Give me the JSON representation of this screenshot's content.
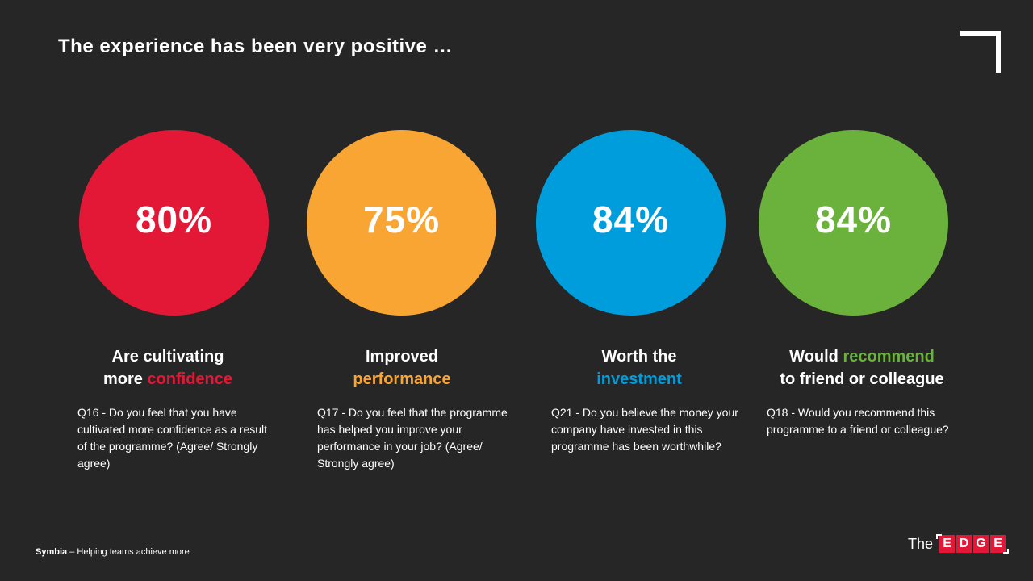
{
  "title": "The experience has been very positive …",
  "colors": {
    "red": "#E31837",
    "orange": "#F9A533",
    "blue": "#009DDC",
    "green": "#6AB23C",
    "background": "#262626"
  },
  "stats": [
    {
      "value": "80%",
      "line1_pre": "Are cultivating",
      "line1_accent": "",
      "line2_pre": "more ",
      "line2_accent": "confidence",
      "line2_post": "",
      "question": "Q16 - Do you feel that you have cultivated more confidence as a result of the programme? (Agree/ Strongly agree)"
    },
    {
      "value": "75%",
      "line1_pre": "Improved",
      "line1_accent": "",
      "line2_pre": "",
      "line2_accent": "performance",
      "line2_post": "",
      "question": "Q17 - Do you feel that the programme has helped you improve your performance in your job? (Agree/ Strongly agree)"
    },
    {
      "value": "84%",
      "line1_pre": "Worth the",
      "line1_accent": "",
      "line2_pre": "",
      "line2_accent": "investment",
      "line2_post": "",
      "question": "Q21 - Do you believe the money your company have invested in this programme has been worthwhile?"
    },
    {
      "value": "84%",
      "line1_pre": "Would ",
      "line1_accent": "recommend",
      "line2_pre": "to friend or colleague",
      "line2_accent": "",
      "line2_post": "",
      "question": "Q18 - Would you recommend this programme to a friend or colleague?"
    }
  ],
  "footer": {
    "brand": "Symbia",
    "tagline": " – Helping teams achieve more"
  },
  "logo": {
    "the": "The",
    "letters": [
      "E",
      "D",
      "G",
      "E"
    ]
  }
}
